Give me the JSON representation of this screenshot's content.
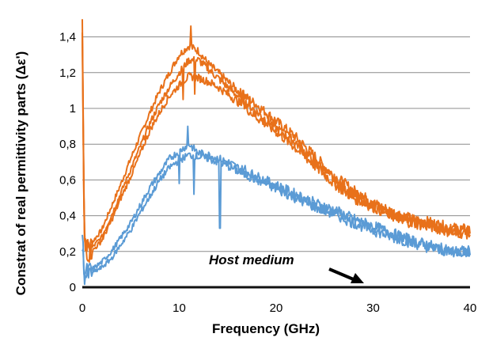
{
  "chart_data": {
    "type": "line",
    "title": "",
    "xlabel": "Frequency (GHz)",
    "ylabel": "Constrat of real permittivity parts (Δε')",
    "xlim": [
      0,
      40
    ],
    "ylim": [
      0,
      1.5
    ],
    "x_ticks": [
      "0",
      "10",
      "20",
      "30",
      "40"
    ],
    "y_ticks": [
      "0",
      "0,2",
      "0,4",
      "0,6",
      "0,8",
      "1",
      "1,2",
      "1,4"
    ],
    "grid": "horizontal",
    "legend": "none",
    "annotation": "Host medium",
    "series": [
      {
        "color": "#E8711A",
        "points": [
          [
            0,
            1.5
          ],
          [
            0.2,
            0.3
          ],
          [
            0.6,
            0.22
          ],
          [
            1,
            0.25
          ],
          [
            2,
            0.32
          ],
          [
            3,
            0.45
          ],
          [
            4,
            0.58
          ],
          [
            5,
            0.72
          ],
          [
            6,
            0.85
          ],
          [
            7,
            0.98
          ],
          [
            8,
            1.1
          ],
          [
            9,
            1.2
          ],
          [
            10,
            1.3
          ],
          [
            11,
            1.35
          ],
          [
            12,
            1.32
          ],
          [
            13,
            1.25
          ],
          [
            14,
            1.2
          ],
          [
            15,
            1.15
          ],
          [
            16,
            1.1
          ],
          [
            18,
            1.02
          ],
          [
            20,
            0.93
          ],
          [
            22,
            0.84
          ],
          [
            24,
            0.73
          ],
          [
            26,
            0.62
          ],
          [
            28,
            0.54
          ],
          [
            30,
            0.47
          ],
          [
            32,
            0.42
          ],
          [
            34,
            0.38
          ],
          [
            36,
            0.36
          ],
          [
            38,
            0.33
          ],
          [
            40,
            0.32
          ]
        ]
      },
      {
        "color": "#E8711A",
        "points": [
          [
            0,
            1.45
          ],
          [
            0.2,
            0.28
          ],
          [
            0.6,
            0.2
          ],
          [
            1,
            0.22
          ],
          [
            2,
            0.28
          ],
          [
            3,
            0.4
          ],
          [
            4,
            0.53
          ],
          [
            5,
            0.66
          ],
          [
            6,
            0.79
          ],
          [
            7,
            0.92
          ],
          [
            8,
            1.03
          ],
          [
            9,
            1.12
          ],
          [
            10,
            1.2
          ],
          [
            11,
            1.27
          ],
          [
            12,
            1.27
          ],
          [
            13,
            1.22
          ],
          [
            14,
            1.17
          ],
          [
            15,
            1.12
          ],
          [
            16,
            1.07
          ],
          [
            18,
            0.98
          ],
          [
            20,
            0.89
          ],
          [
            22,
            0.81
          ],
          [
            24,
            0.7
          ],
          [
            26,
            0.6
          ],
          [
            28,
            0.52
          ],
          [
            30,
            0.46
          ],
          [
            32,
            0.41
          ],
          [
            34,
            0.37
          ],
          [
            36,
            0.35
          ],
          [
            38,
            0.32
          ],
          [
            40,
            0.31
          ]
        ]
      },
      {
        "color": "#E8711A",
        "points": [
          [
            0,
            1.4
          ],
          [
            0.2,
            0.25
          ],
          [
            0.6,
            0.18
          ],
          [
            1,
            0.2
          ],
          [
            2,
            0.26
          ],
          [
            3,
            0.37
          ],
          [
            4,
            0.5
          ],
          [
            5,
            0.62
          ],
          [
            6,
            0.75
          ],
          [
            7,
            0.88
          ],
          [
            8,
            0.98
          ],
          [
            9,
            1.07
          ],
          [
            10,
            1.13
          ],
          [
            11,
            1.18
          ],
          [
            12,
            1.17
          ],
          [
            13,
            1.15
          ],
          [
            14,
            1.12
          ],
          [
            15,
            1.08
          ],
          [
            16,
            1.04
          ],
          [
            18,
            0.95
          ],
          [
            20,
            0.87
          ],
          [
            22,
            0.78
          ],
          [
            24,
            0.68
          ],
          [
            26,
            0.58
          ],
          [
            28,
            0.5
          ],
          [
            30,
            0.45
          ],
          [
            32,
            0.4
          ],
          [
            34,
            0.36
          ],
          [
            36,
            0.34
          ],
          [
            38,
            0.31
          ],
          [
            40,
            0.3
          ]
        ]
      },
      {
        "color": "#5B9BD5",
        "points": [
          [
            0,
            0.3
          ],
          [
            0.2,
            0.08
          ],
          [
            0.6,
            0.09
          ],
          [
            1,
            0.1
          ],
          [
            2,
            0.14
          ],
          [
            3,
            0.2
          ],
          [
            4,
            0.28
          ],
          [
            5,
            0.36
          ],
          [
            6,
            0.46
          ],
          [
            7,
            0.56
          ],
          [
            8,
            0.64
          ],
          [
            9,
            0.72
          ],
          [
            10,
            0.76
          ],
          [
            11,
            0.8
          ],
          [
            12,
            0.75
          ],
          [
            13,
            0.74
          ],
          [
            14,
            0.72
          ],
          [
            15,
            0.7
          ],
          [
            16,
            0.67
          ],
          [
            18,
            0.62
          ],
          [
            20,
            0.57
          ],
          [
            22,
            0.52
          ],
          [
            24,
            0.47
          ],
          [
            26,
            0.43
          ],
          [
            28,
            0.38
          ],
          [
            30,
            0.34
          ],
          [
            32,
            0.3
          ],
          [
            34,
            0.26
          ],
          [
            36,
            0.23
          ],
          [
            38,
            0.2
          ],
          [
            40,
            0.2
          ]
        ]
      },
      {
        "color": "#5B9BD5",
        "points": [
          [
            0,
            0.25
          ],
          [
            0.2,
            0.06
          ],
          [
            0.6,
            0.07
          ],
          [
            1,
            0.08
          ],
          [
            2,
            0.11
          ],
          [
            3,
            0.16
          ],
          [
            4,
            0.24
          ],
          [
            5,
            0.32
          ],
          [
            6,
            0.42
          ],
          [
            7,
            0.51
          ],
          [
            8,
            0.6
          ],
          [
            9,
            0.67
          ],
          [
            10,
            0.71
          ],
          [
            11,
            0.74
          ],
          [
            12,
            0.73
          ],
          [
            13,
            0.72
          ],
          [
            14,
            0.7
          ],
          [
            15,
            0.68
          ],
          [
            16,
            0.65
          ],
          [
            18,
            0.6
          ],
          [
            20,
            0.55
          ],
          [
            22,
            0.5
          ],
          [
            24,
            0.45
          ],
          [
            26,
            0.41
          ],
          [
            28,
            0.36
          ],
          [
            30,
            0.32
          ],
          [
            32,
            0.28
          ],
          [
            34,
            0.25
          ],
          [
            36,
            0.22
          ],
          [
            38,
            0.2
          ],
          [
            40,
            0.2
          ]
        ]
      }
    ],
    "spikes": [
      {
        "series": 0,
        "x": 11.2,
        "y": 1.46
      },
      {
        "series": 1,
        "x": 10.4,
        "y": 1.05
      },
      {
        "series": 1,
        "x": 11.6,
        "y": 1.08
      },
      {
        "series": 2,
        "x": 16.6,
        "y": 1.1
      },
      {
        "series": 3,
        "x": 10.9,
        "y": 0.9
      },
      {
        "series": 3,
        "x": 10.0,
        "y": 0.58
      },
      {
        "series": 4,
        "x": 11.5,
        "y": 0.52
      },
      {
        "series": 4,
        "x": 14.2,
        "y": 0.33
      },
      {
        "series": 3,
        "x": 16.8,
        "y": 0.68
      }
    ]
  }
}
